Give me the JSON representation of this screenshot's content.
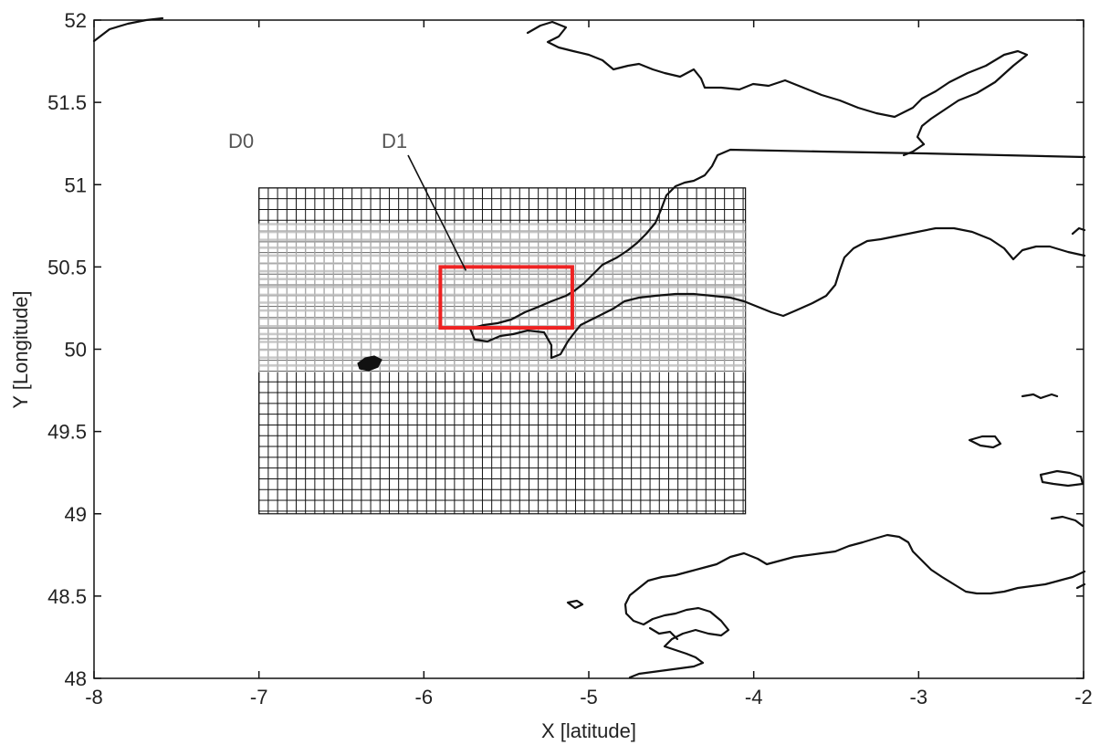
{
  "chart_data": {
    "type": "map",
    "xlabel": "X [latitude]",
    "ylabel": "Y [Longitude]",
    "xlim": [
      -8,
      -2
    ],
    "ylim": [
      48,
      52
    ],
    "xticks": [
      "-8",
      "-7",
      "-6",
      "-5",
      "-4",
      "-3",
      "-2"
    ],
    "yticks": [
      "48",
      "48.5",
      "49",
      "49.5",
      "50",
      "50.5",
      "51",
      "51.5",
      "52"
    ],
    "grid": false,
    "domains": [
      {
        "name": "D0",
        "label": "D0",
        "x_range": [
          -7.0,
          -4.05
        ],
        "y_range": [
          49.0,
          50.98
        ],
        "line_color": "#111111"
      },
      {
        "name": "D1",
        "label": "D1",
        "x_range": [
          -5.9,
          -5.1
        ],
        "y_range": [
          50.13,
          50.5
        ],
        "line_color": "#ee2222"
      }
    ],
    "overlay_band": {
      "x_range": [
        -7.0,
        -4.05
      ],
      "y_range": [
        49.86,
        50.76
      ],
      "color": "#bbbbbb"
    },
    "colors": {
      "coastline": "#111111",
      "grid_d0": "#111111",
      "box_d1": "#ee2222"
    }
  }
}
